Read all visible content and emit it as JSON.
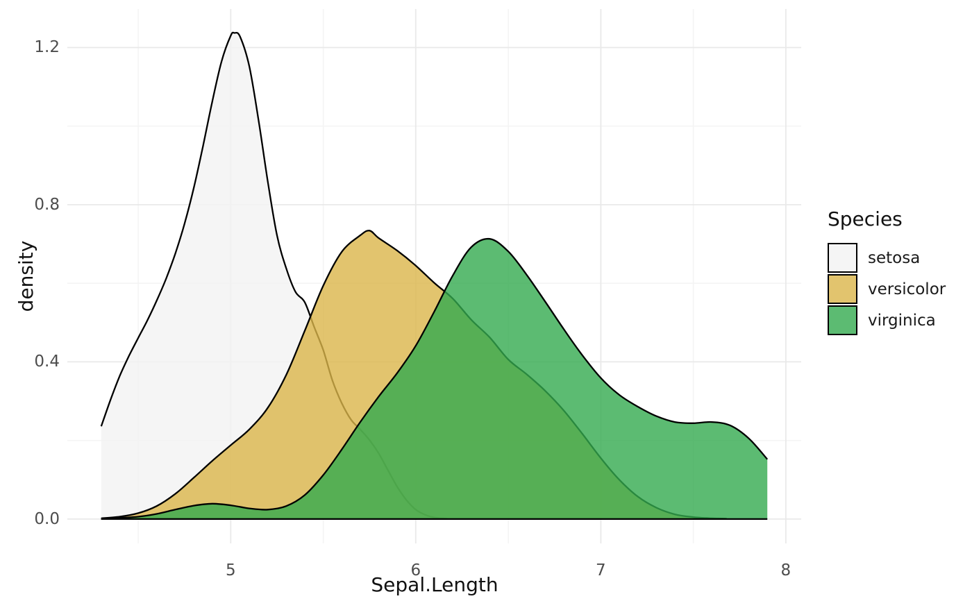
{
  "chart_data": {
    "type": "area",
    "subtype": "kernel-density",
    "title": "",
    "xlabel": "Sepal.Length",
    "ylabel": "density",
    "legend_title": "Species",
    "legend_position": "right",
    "grid": "on",
    "xlim": [
      4.117,
      8.083
    ],
    "ylim": [
      -0.062,
      1.298
    ],
    "x_ticks": {
      "values": [
        5,
        6,
        7,
        8
      ],
      "labels": [
        "5",
        "6",
        "7",
        "8"
      ]
    },
    "y_ticks": {
      "values": [
        0,
        0.4,
        0.8,
        1.2
      ],
      "labels": [
        "0.0",
        "0.4",
        "0.8",
        "1.2"
      ]
    },
    "x_minor": [
      4.5,
      5.5,
      6.5,
      7.5
    ],
    "y_minor": [
      0.2,
      0.6,
      1.0
    ],
    "outline_color": "#000000",
    "fill_alpha": 0.8,
    "series": [
      {
        "name": "setosa",
        "fill": "#DBB54A-PLACEHOLDER",
        "swatch": "#F5F5F5",
        "points": [
          [
            4.3,
            0.236
          ],
          [
            4.35,
            0.303
          ],
          [
            4.4,
            0.364
          ],
          [
            4.45,
            0.415
          ],
          [
            4.5,
            0.461
          ],
          [
            4.55,
            0.506
          ],
          [
            4.6,
            0.556
          ],
          [
            4.65,
            0.611
          ],
          [
            4.7,
            0.675
          ],
          [
            4.75,
            0.751
          ],
          [
            4.8,
            0.842
          ],
          [
            4.85,
            0.949
          ],
          [
            4.9,
            1.062
          ],
          [
            4.95,
            1.164
          ],
          [
            5.0,
            1.23
          ],
          [
            5.02,
            1.237
          ],
          [
            5.05,
            1.228
          ],
          [
            5.1,
            1.153
          ],
          [
            5.15,
            1.016
          ],
          [
            5.2,
            0.86
          ],
          [
            5.25,
            0.722
          ],
          [
            5.3,
            0.638
          ],
          [
            5.35,
            0.578
          ],
          [
            5.4,
            0.552
          ],
          [
            5.45,
            0.49
          ],
          [
            5.5,
            0.43
          ],
          [
            5.55,
            0.352
          ],
          [
            5.6,
            0.295
          ],
          [
            5.65,
            0.253
          ],
          [
            5.7,
            0.228
          ],
          [
            5.75,
            0.201
          ],
          [
            5.8,
            0.167
          ],
          [
            5.85,
            0.124
          ],
          [
            5.9,
            0.082
          ],
          [
            5.95,
            0.048
          ],
          [
            6.0,
            0.024
          ],
          [
            6.05,
            0.011
          ],
          [
            6.1,
            0.004
          ],
          [
            6.17,
            0.001
          ]
        ]
      },
      {
        "name": "versicolor",
        "fill": "#DBB54A",
        "swatch": "#E2C46E",
        "points": [
          [
            4.3,
            0.002
          ],
          [
            4.4,
            0.006
          ],
          [
            4.5,
            0.015
          ],
          [
            4.6,
            0.033
          ],
          [
            4.7,
            0.064
          ],
          [
            4.8,
            0.105
          ],
          [
            4.9,
            0.148
          ],
          [
            5.0,
            0.188
          ],
          [
            5.1,
            0.228
          ],
          [
            5.2,
            0.283
          ],
          [
            5.3,
            0.367
          ],
          [
            5.4,
            0.479
          ],
          [
            5.5,
            0.594
          ],
          [
            5.6,
            0.68
          ],
          [
            5.7,
            0.722
          ],
          [
            5.75,
            0.734
          ],
          [
            5.8,
            0.715
          ],
          [
            5.9,
            0.683
          ],
          [
            6.0,
            0.645
          ],
          [
            6.1,
            0.601
          ],
          [
            6.2,
            0.561
          ],
          [
            6.3,
            0.507
          ],
          [
            6.4,
            0.462
          ],
          [
            6.5,
            0.406
          ],
          [
            6.6,
            0.368
          ],
          [
            6.7,
            0.326
          ],
          [
            6.8,
            0.276
          ],
          [
            6.9,
            0.217
          ],
          [
            7.0,
            0.155
          ],
          [
            7.1,
            0.1
          ],
          [
            7.2,
            0.057
          ],
          [
            7.3,
            0.029
          ],
          [
            7.4,
            0.012
          ],
          [
            7.5,
            0.005
          ],
          [
            7.6,
            0.002
          ],
          [
            7.68,
            0.001
          ]
        ]
      },
      {
        "name": "virginica",
        "fill": "#33AA4F",
        "swatch": "#5CBB72",
        "points": [
          [
            4.3,
            0.001
          ],
          [
            4.4,
            0.003
          ],
          [
            4.5,
            0.006
          ],
          [
            4.6,
            0.013
          ],
          [
            4.7,
            0.024
          ],
          [
            4.8,
            0.034
          ],
          [
            4.9,
            0.039
          ],
          [
            5.0,
            0.035
          ],
          [
            5.1,
            0.027
          ],
          [
            5.2,
            0.024
          ],
          [
            5.3,
            0.033
          ],
          [
            5.4,
            0.061
          ],
          [
            5.5,
            0.112
          ],
          [
            5.6,
            0.177
          ],
          [
            5.7,
            0.247
          ],
          [
            5.8,
            0.312
          ],
          [
            5.9,
            0.372
          ],
          [
            6.0,
            0.441
          ],
          [
            6.1,
            0.528
          ],
          [
            6.2,
            0.62
          ],
          [
            6.3,
            0.692
          ],
          [
            6.4,
            0.713
          ],
          [
            6.5,
            0.681
          ],
          [
            6.6,
            0.621
          ],
          [
            6.7,
            0.553
          ],
          [
            6.8,
            0.483
          ],
          [
            6.9,
            0.417
          ],
          [
            7.0,
            0.359
          ],
          [
            7.1,
            0.316
          ],
          [
            7.2,
            0.286
          ],
          [
            7.3,
            0.262
          ],
          [
            7.4,
            0.247
          ],
          [
            7.5,
            0.244
          ],
          [
            7.6,
            0.247
          ],
          [
            7.7,
            0.238
          ],
          [
            7.8,
            0.205
          ],
          [
            7.9,
            0.152
          ]
        ]
      }
    ]
  }
}
